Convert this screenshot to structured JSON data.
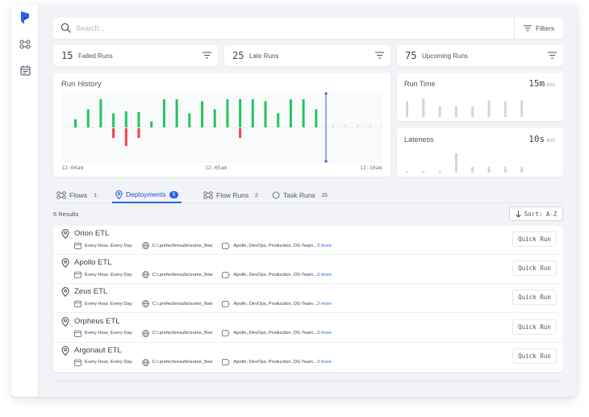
{
  "search": {
    "placeholder": "Search..."
  },
  "filters_label": "Filters",
  "stats": [
    {
      "count": "15",
      "label": "Failed Runs"
    },
    {
      "count": "25",
      "label": "Late Runs"
    },
    {
      "count": "75",
      "label": "Upcoming Runs"
    }
  ],
  "run_history": {
    "title": "Run History",
    "time_labels": [
      "12:00am",
      "12:05am",
      "12:10am"
    ],
    "bars": [
      {
        "up": 0.2,
        "down": 0
      },
      {
        "up": 0.45,
        "down": 0
      },
      {
        "up": 0.7,
        "down": 0
      },
      {
        "up": 0.35,
        "down": 0.3
      },
      {
        "up": 0.4,
        "down": 0.55
      },
      {
        "up": 0.38,
        "down": 0.3
      },
      {
        "up": 0.15,
        "down": 0
      },
      {
        "up": 0.7,
        "down": 0
      },
      {
        "up": 0.7,
        "down": 0
      },
      {
        "up": 0.35,
        "down": 0
      },
      {
        "up": 0.65,
        "down": 0
      },
      {
        "up": 0.45,
        "down": 0
      },
      {
        "up": 0.7,
        "down": 0
      },
      {
        "up": 0.7,
        "down": 0.3
      },
      {
        "up": 0.7,
        "down": 0
      },
      {
        "up": 0.65,
        "down": 0
      },
      {
        "up": 0.35,
        "down": 0
      },
      {
        "up": 0.7,
        "down": 0
      },
      {
        "up": 0.7,
        "down": 0
      },
      {
        "up": 0.45,
        "down": 0
      }
    ],
    "future_ticks": 6,
    "colors": {
      "success": "#22c55e",
      "failed": "#ef4444",
      "cursor": "#3b5bdb"
    }
  },
  "run_time": {
    "title": "Run Time",
    "value": "15m",
    "unit": "AVG",
    "bars": [
      0.8,
      0.95,
      0.55,
      0.55,
      0.55,
      0.85,
      0.8,
      0.85
    ]
  },
  "lateness": {
    "title": "Lateness",
    "value": "10s",
    "unit": "AVG",
    "bars": [
      0.05,
      0.1,
      0.1,
      1.0,
      0.3,
      0.3,
      0.3,
      0.3
    ]
  },
  "tabs": [
    {
      "label": "Flows",
      "count": "1"
    },
    {
      "label": "Deployments",
      "count": "5",
      "active": true
    },
    {
      "label": "Flow Runs",
      "count": "2"
    },
    {
      "label": "Task Runs",
      "count": "25"
    }
  ],
  "results_label": "5 Results",
  "sort_label": "Sort: A-Z",
  "deployments": [
    {
      "name": "Orion ETL",
      "schedule": "Every Hour, Every Day",
      "path": "C:\\.prefect\\results\\some_flow",
      "tags": "Apollo, DevOps, Production, DS-Team...",
      "more": "3 more",
      "action": "Quick Run"
    },
    {
      "name": "Apollo ETL",
      "schedule": "Every Hour, Every Day",
      "path": "C:\\.prefect\\results\\some_flow",
      "tags": "Apollo, DevOps, Production, DS-Team...",
      "more": "3 more",
      "action": "Quick Run"
    },
    {
      "name": "Zeus ETL",
      "schedule": "Every Hour, Every Day",
      "path": "C:\\.prefect\\results\\some_flow",
      "tags": "Apollo, DevOps, Production, DS-Team...",
      "more": "3 more",
      "action": "Quick Run"
    },
    {
      "name": "Orpheus ETL",
      "schedule": "Every Hour, Every Day",
      "path": "C:\\.prefect\\results\\some_flow",
      "tags": "Apollo, DevOps, Production, DS-Team...",
      "more": "3 more",
      "action": "Quick Run"
    },
    {
      "name": "Argonaut ETL",
      "schedule": "Every Hour, Every Day",
      "path": "C:\\.prefect\\results\\some_flow",
      "tags": "Apollo, DevOps, Production, DS-Team...",
      "more": "3 more",
      "action": "Quick Run"
    }
  ]
}
